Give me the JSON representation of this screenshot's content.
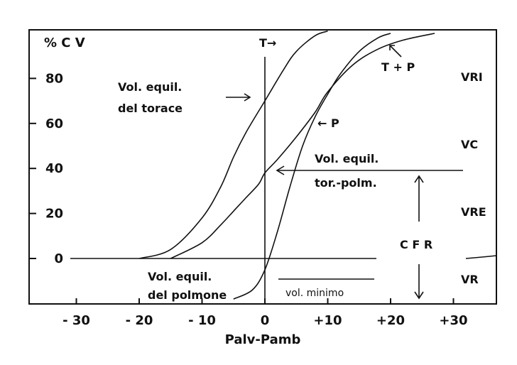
{
  "chart_data": {
    "type": "line",
    "title": "",
    "xlabel": "Palv-Pamb",
    "ylabel": "% C V",
    "xlim": [
      -35,
      37
    ],
    "ylim": [
      -20,
      100
    ],
    "x_ticks": [
      -30,
      -20,
      -10,
      0,
      10,
      20,
      30
    ],
    "x_tick_labels": [
      "- 30",
      "- 20",
      "- 10",
      "0",
      "+10",
      "+20",
      "+30"
    ],
    "y_ticks": [
      0,
      20,
      40,
      60,
      80
    ],
    "y_tick_labels": [
      "0",
      "20",
      "40",
      "60",
      "80"
    ],
    "grid": false,
    "series": [
      {
        "name": "T",
        "x": [
          -20,
          -15,
          -10,
          -7,
          -5,
          -3,
          0,
          3,
          5,
          8,
          10
        ],
        "y": [
          0,
          4,
          18,
          32,
          45,
          56,
          70,
          84,
          92,
          99,
          101
        ]
      },
      {
        "name": "T + P",
        "x": [
          -15,
          -10,
          -7,
          -5,
          -3,
          -1,
          0,
          2,
          5,
          8,
          10,
          14,
          18,
          22,
          27
        ],
        "y": [
          0,
          7,
          15,
          21,
          27,
          33,
          38,
          44,
          54,
          65,
          74,
          86,
          93,
          97,
          100
        ]
      },
      {
        "name": "P",
        "x": [
          -5,
          -2,
          0,
          2,
          4,
          6,
          8,
          10,
          12,
          15,
          18,
          20
        ],
        "y": [
          -18,
          -14,
          -5,
          12,
          32,
          50,
          63,
          73,
          82,
          92,
          98,
          100
        ]
      }
    ],
    "annotations": {
      "t_label": "T→",
      "tp_label": "T + P",
      "p_label": "← P",
      "eq_thorax": [
        "Vol. equil.",
        "del torace"
      ],
      "eq_thorax_lung": [
        "Vol. equil.",
        "tor.-polm."
      ],
      "eq_lung": [
        "Vol. equil.",
        "del polmone"
      ],
      "min_vol": "vol. minimo",
      "frc": "C F R"
    },
    "right_labels": [
      "VRI",
      "VC",
      "VRE",
      "VR"
    ]
  }
}
